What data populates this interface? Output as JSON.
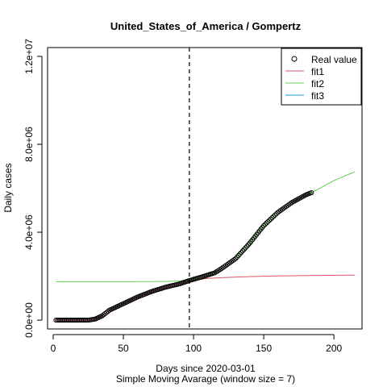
{
  "chart_data": {
    "type": "line",
    "title": "United_States_of_America / Gompertz",
    "xlabel": "Days since 2020-03-01",
    "subtitle": "Simple Moving Avarage (window size = 7)",
    "ylabel": "Daily cases",
    "xlim": [
      -4,
      220
    ],
    "ylim": [
      -400000,
      12400000
    ],
    "x_ticks": [
      0,
      50,
      100,
      150,
      200
    ],
    "x_tick_labels": [
      "0",
      "50",
      "100",
      "150",
      "200"
    ],
    "y_ticks": [
      0,
      4000000,
      8000000,
      12000000
    ],
    "y_tick_labels": [
      "0.0e+00",
      "4.0e+06",
      "8.0e+06",
      "1.2e+07"
    ],
    "vline_x": 97,
    "grid": false,
    "legend_position": "top-right",
    "colors": {
      "real": "#000000",
      "fit1": "#DF536B",
      "fit2": "#61D04F",
      "fit3": "#2297E6"
    },
    "series": [
      {
        "name": "Real value",
        "style": "points",
        "x_range": [
          2,
          184
        ],
        "anchors": [
          [
            2,
            0
          ],
          [
            25,
            0
          ],
          [
            30,
            50000
          ],
          [
            35,
            200000
          ],
          [
            40,
            450000
          ],
          [
            50,
            750000
          ],
          [
            60,
            1050000
          ],
          [
            70,
            1300000
          ],
          [
            80,
            1500000
          ],
          [
            90,
            1650000
          ],
          [
            97,
            1800000
          ],
          [
            105,
            1950000
          ],
          [
            115,
            2150000
          ],
          [
            120,
            2350000
          ],
          [
            130,
            2800000
          ],
          [
            140,
            3500000
          ],
          [
            150,
            4300000
          ],
          [
            160,
            4900000
          ],
          [
            170,
            5350000
          ],
          [
            180,
            5700000
          ],
          [
            184,
            5800000
          ]
        ]
      },
      {
        "name": "fit1",
        "style": "line",
        "anchors": [
          [
            2,
            0
          ],
          [
            25,
            0
          ],
          [
            30,
            50000
          ],
          [
            35,
            200000
          ],
          [
            40,
            450000
          ],
          [
            50,
            750000
          ],
          [
            60,
            1050000
          ],
          [
            70,
            1300000
          ],
          [
            80,
            1500000
          ],
          [
            90,
            1650000
          ],
          [
            97,
            1780000
          ],
          [
            110,
            1900000
          ],
          [
            130,
            1960000
          ],
          [
            150,
            2000000
          ],
          [
            180,
            2030000
          ],
          [
            215,
            2050000
          ]
        ]
      },
      {
        "name": "fit2",
        "style": "line",
        "anchors": [
          [
            2,
            1750000
          ],
          [
            50,
            1750000
          ],
          [
            80,
            1760000
          ],
          [
            97,
            1800000
          ],
          [
            105,
            1950000
          ],
          [
            115,
            2150000
          ],
          [
            120,
            2350000
          ],
          [
            130,
            2800000
          ],
          [
            140,
            3500000
          ],
          [
            150,
            4300000
          ],
          [
            160,
            4900000
          ],
          [
            170,
            5350000
          ],
          [
            180,
            5700000
          ],
          [
            184,
            5800000
          ],
          [
            190,
            6000000
          ],
          [
            200,
            6350000
          ],
          [
            215,
            6750000
          ]
        ]
      },
      {
        "name": "fit3",
        "style": "line",
        "anchors": []
      }
    ]
  }
}
